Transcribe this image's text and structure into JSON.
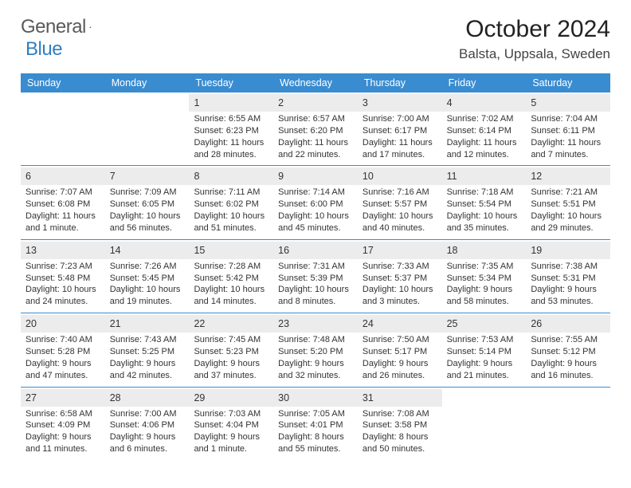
{
  "logo": {
    "text1": "General",
    "text2": "Blue"
  },
  "title": "October 2024",
  "location": "Balsta, Uppsala, Sweden",
  "colors": {
    "header_bg": "#3a8cd0",
    "header_text": "#ffffff",
    "divider": "#3a8cd0",
    "daynum_bg": "#ececec",
    "logo_gray": "#5a5a5a",
    "logo_blue": "#2f7fc2"
  },
  "weekdays": [
    "Sunday",
    "Monday",
    "Tuesday",
    "Wednesday",
    "Thursday",
    "Friday",
    "Saturday"
  ],
  "weeks": [
    [
      null,
      null,
      {
        "n": "1",
        "sr": "6:55 AM",
        "ss": "6:23 PM",
        "dl": "11 hours and 28 minutes."
      },
      {
        "n": "2",
        "sr": "6:57 AM",
        "ss": "6:20 PM",
        "dl": "11 hours and 22 minutes."
      },
      {
        "n": "3",
        "sr": "7:00 AM",
        "ss": "6:17 PM",
        "dl": "11 hours and 17 minutes."
      },
      {
        "n": "4",
        "sr": "7:02 AM",
        "ss": "6:14 PM",
        "dl": "11 hours and 12 minutes."
      },
      {
        "n": "5",
        "sr": "7:04 AM",
        "ss": "6:11 PM",
        "dl": "11 hours and 7 minutes."
      }
    ],
    [
      {
        "n": "6",
        "sr": "7:07 AM",
        "ss": "6:08 PM",
        "dl": "11 hours and 1 minute."
      },
      {
        "n": "7",
        "sr": "7:09 AM",
        "ss": "6:05 PM",
        "dl": "10 hours and 56 minutes."
      },
      {
        "n": "8",
        "sr": "7:11 AM",
        "ss": "6:02 PM",
        "dl": "10 hours and 51 minutes."
      },
      {
        "n": "9",
        "sr": "7:14 AM",
        "ss": "6:00 PM",
        "dl": "10 hours and 45 minutes."
      },
      {
        "n": "10",
        "sr": "7:16 AM",
        "ss": "5:57 PM",
        "dl": "10 hours and 40 minutes."
      },
      {
        "n": "11",
        "sr": "7:18 AM",
        "ss": "5:54 PM",
        "dl": "10 hours and 35 minutes."
      },
      {
        "n": "12",
        "sr": "7:21 AM",
        "ss": "5:51 PM",
        "dl": "10 hours and 29 minutes."
      }
    ],
    [
      {
        "n": "13",
        "sr": "7:23 AM",
        "ss": "5:48 PM",
        "dl": "10 hours and 24 minutes."
      },
      {
        "n": "14",
        "sr": "7:26 AM",
        "ss": "5:45 PM",
        "dl": "10 hours and 19 minutes."
      },
      {
        "n": "15",
        "sr": "7:28 AM",
        "ss": "5:42 PM",
        "dl": "10 hours and 14 minutes."
      },
      {
        "n": "16",
        "sr": "7:31 AM",
        "ss": "5:39 PM",
        "dl": "10 hours and 8 minutes."
      },
      {
        "n": "17",
        "sr": "7:33 AM",
        "ss": "5:37 PM",
        "dl": "10 hours and 3 minutes."
      },
      {
        "n": "18",
        "sr": "7:35 AM",
        "ss": "5:34 PM",
        "dl": "9 hours and 58 minutes."
      },
      {
        "n": "19",
        "sr": "7:38 AM",
        "ss": "5:31 PM",
        "dl": "9 hours and 53 minutes."
      }
    ],
    [
      {
        "n": "20",
        "sr": "7:40 AM",
        "ss": "5:28 PM",
        "dl": "9 hours and 47 minutes."
      },
      {
        "n": "21",
        "sr": "7:43 AM",
        "ss": "5:25 PM",
        "dl": "9 hours and 42 minutes."
      },
      {
        "n": "22",
        "sr": "7:45 AM",
        "ss": "5:23 PM",
        "dl": "9 hours and 37 minutes."
      },
      {
        "n": "23",
        "sr": "7:48 AM",
        "ss": "5:20 PM",
        "dl": "9 hours and 32 minutes."
      },
      {
        "n": "24",
        "sr": "7:50 AM",
        "ss": "5:17 PM",
        "dl": "9 hours and 26 minutes."
      },
      {
        "n": "25",
        "sr": "7:53 AM",
        "ss": "5:14 PM",
        "dl": "9 hours and 21 minutes."
      },
      {
        "n": "26",
        "sr": "7:55 AM",
        "ss": "5:12 PM",
        "dl": "9 hours and 16 minutes."
      }
    ],
    [
      {
        "n": "27",
        "sr": "6:58 AM",
        "ss": "4:09 PM",
        "dl": "9 hours and 11 minutes."
      },
      {
        "n": "28",
        "sr": "7:00 AM",
        "ss": "4:06 PM",
        "dl": "9 hours and 6 minutes."
      },
      {
        "n": "29",
        "sr": "7:03 AM",
        "ss": "4:04 PM",
        "dl": "9 hours and 1 minute."
      },
      {
        "n": "30",
        "sr": "7:05 AM",
        "ss": "4:01 PM",
        "dl": "8 hours and 55 minutes."
      },
      {
        "n": "31",
        "sr": "7:08 AM",
        "ss": "3:58 PM",
        "dl": "8 hours and 50 minutes."
      },
      null,
      null
    ]
  ],
  "labels": {
    "sunrise": "Sunrise:",
    "sunset": "Sunset:",
    "daylight": "Daylight:"
  }
}
